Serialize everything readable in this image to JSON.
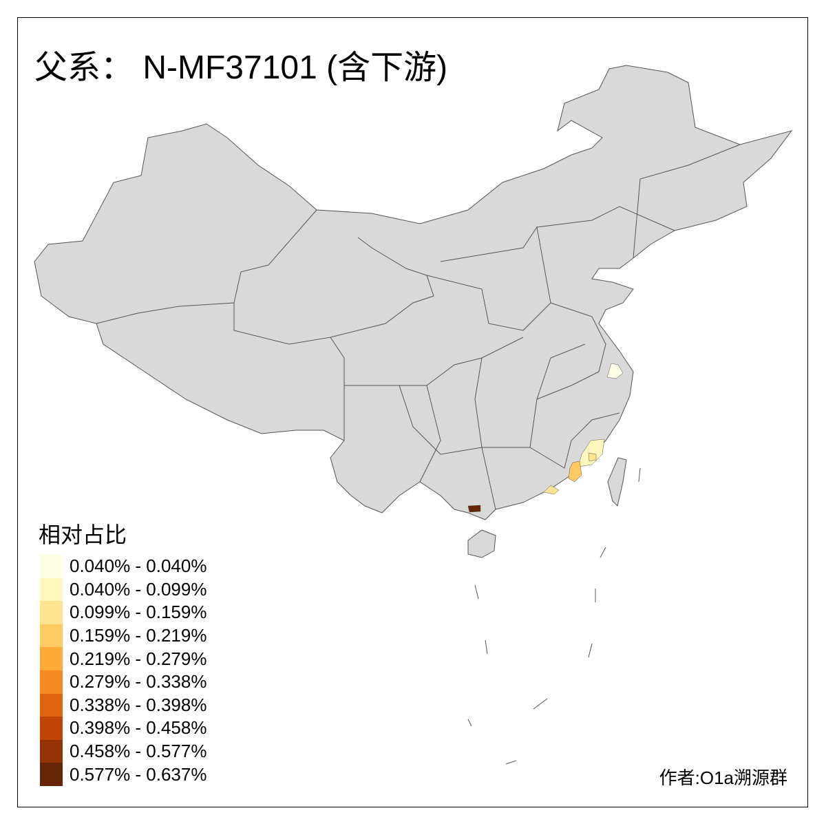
{
  "title": "父系： N-MF37101 (含下游)",
  "legend": {
    "title": "相对占比",
    "items": [
      {
        "label": "0.040% - 0.040%",
        "color": "#FFFFE5"
      },
      {
        "label": "0.040% - 0.099%",
        "color": "#FFF7BC"
      },
      {
        "label": "0.099% - 0.159%",
        "color": "#FEE391"
      },
      {
        "label": "0.159% - 0.219%",
        "color": "#FECB63"
      },
      {
        "label": "0.219% - 0.279%",
        "color": "#FEAB3A"
      },
      {
        "label": "0.279% - 0.338%",
        "color": "#F68A22"
      },
      {
        "label": "0.338% - 0.398%",
        "color": "#E1640E"
      },
      {
        "label": "0.398% - 0.458%",
        "color": "#C04504"
      },
      {
        "label": "0.458% - 0.577%",
        "color": "#933204"
      },
      {
        "label": "0.577% - 0.637%",
        "color": "#662506"
      }
    ]
  },
  "map": {
    "base_color": "#D9D9D9",
    "border_color": "#555555"
  },
  "author": "作者:O1a溯源群"
}
